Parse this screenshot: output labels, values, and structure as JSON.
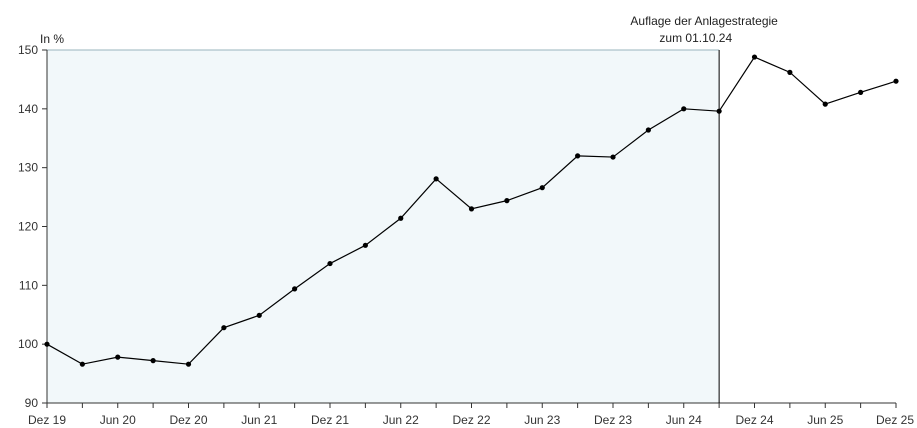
{
  "chart_data": {
    "type": "line",
    "ylabel": "In %",
    "ylim": [
      90,
      150
    ],
    "yticks": [
      90,
      100,
      110,
      120,
      130,
      140,
      150
    ],
    "xticks": [
      "Dez 19",
      "Jun 20",
      "Dez 20",
      "Jun 21",
      "Dez 21",
      "Jun 22",
      "Dez 22",
      "Jun 23",
      "Dez 23",
      "Jun 24",
      "Dez 24",
      "Jun 25",
      "Dez 25"
    ],
    "x": [
      "Dez 19",
      "Mrz 20",
      "Jun 20",
      "Sep 20",
      "Dez 20",
      "Mrz 21",
      "Jun 21",
      "Sep 21",
      "Dez 21",
      "Mrz 22",
      "Jun 22",
      "Sep 22",
      "Dez 22",
      "Mrz 23",
      "Jun 23",
      "Sep 23",
      "Dez 23",
      "Mrz 24",
      "Jun 24",
      "Sep 24",
      "Dez 24",
      "Mrz 25",
      "Jun 25",
      "Sep 25",
      "Dez 25"
    ],
    "series": [
      {
        "values": [
          100.0,
          96.6,
          97.8,
          97.2,
          96.6,
          102.8,
          104.9,
          109.4,
          113.7,
          116.8,
          121.4,
          128.1,
          123.0,
          124.4,
          126.6,
          132.0,
          131.8,
          136.4,
          140.0,
          139.6,
          148.8,
          146.2,
          140.8,
          142.8,
          144.7
        ],
        "color": "#000000"
      }
    ],
    "highlight_region": {
      "from": "Dez 19",
      "to": "Sep 24",
      "color": "#f2f8fa"
    },
    "annotation": {
      "x": "Sep 24",
      "lines": [
        "Auflage der Anlagestrategie",
        "zum 01.10.24"
      ]
    },
    "grid": false
  }
}
